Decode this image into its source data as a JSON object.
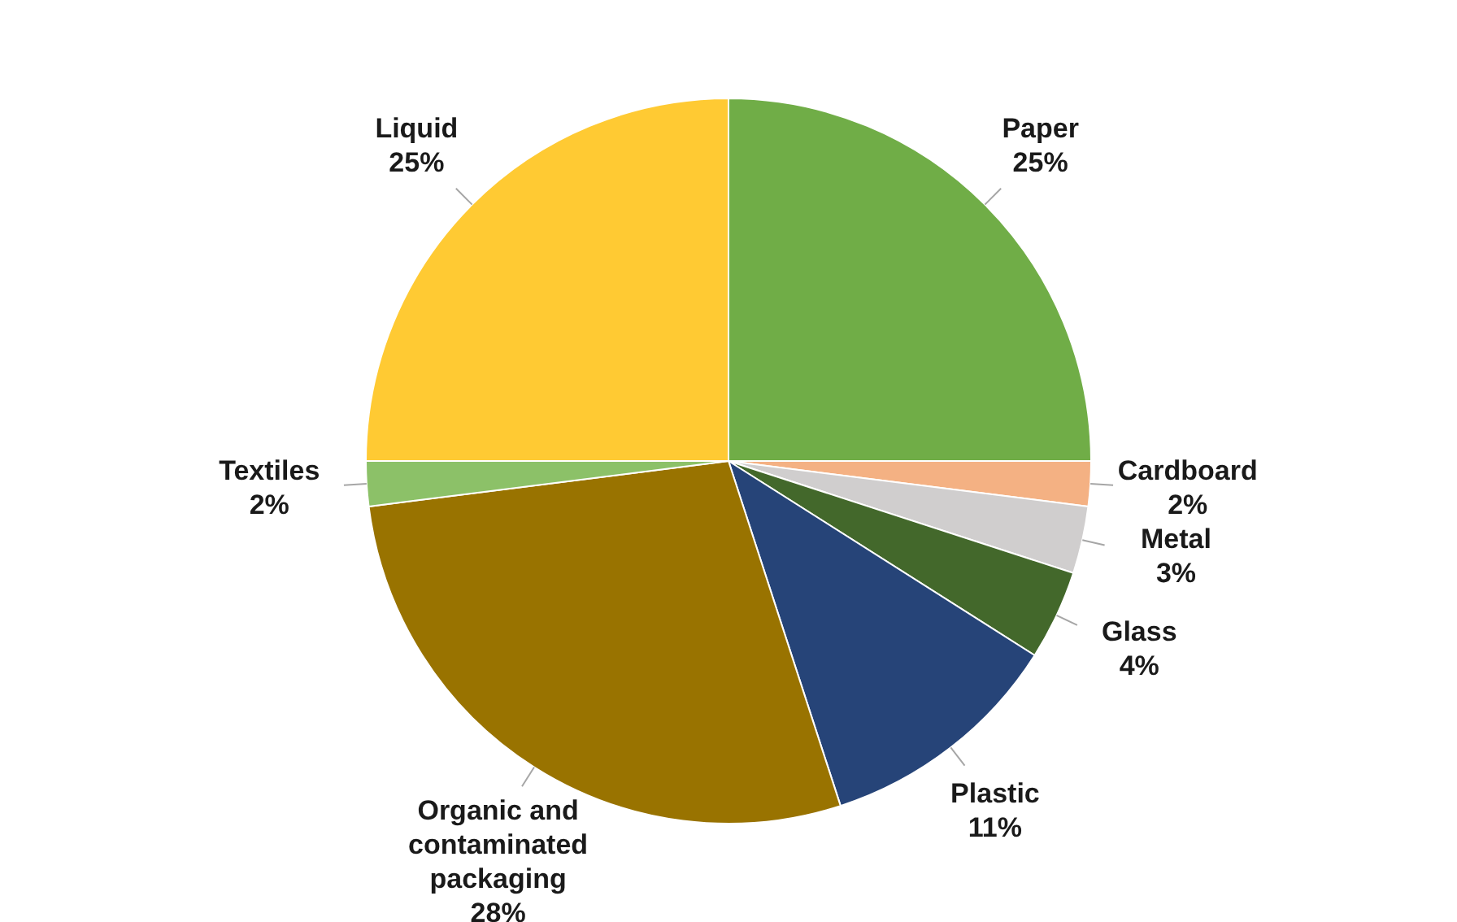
{
  "chart_data": {
    "type": "pie",
    "categories": [
      "Paper",
      "Cardboard",
      "Metal",
      "Glass",
      "Plastic",
      "Organic and contaminated packaging",
      "Textiles",
      "Liquid"
    ],
    "values": [
      25,
      2,
      3,
      4,
      11,
      28,
      2,
      25
    ],
    "colors": [
      "#70ad47",
      "#f4b183",
      "#d0cece",
      "#43682b",
      "#264478",
      "#997300",
      "#8cc168",
      "#ffca33"
    ],
    "value_labels": [
      "25%",
      "2%",
      "3%",
      "4%",
      "11%",
      "28%",
      "2%",
      "25%"
    ],
    "legend": false
  }
}
